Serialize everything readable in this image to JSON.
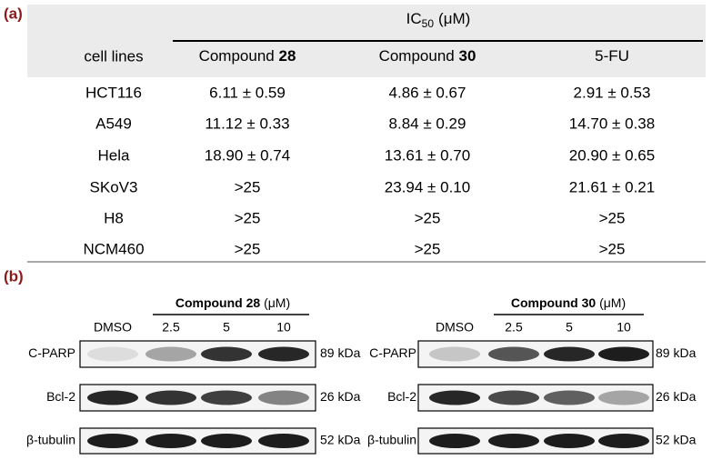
{
  "panel_a": {
    "label": "(a)",
    "header": {
      "group": {
        "main": "IC",
        "sub": "50",
        "unit": "(μM)"
      },
      "row_header": "cell lines",
      "columns": [
        {
          "prefix": "Compound",
          "bold": "28"
        },
        {
          "prefix": "Compound",
          "bold": "30"
        },
        {
          "prefix": "5-FU"
        }
      ]
    },
    "rows": [
      [
        "HCT116",
        "6.11 ± 0.59",
        "4.86 ± 0.67",
        "2.91 ± 0.53"
      ],
      [
        "A549",
        "11.12 ± 0.33",
        "8.84 ± 0.29",
        "14.70 ± 0.38"
      ],
      [
        "Hela",
        "18.90 ± 0.74",
        "13.61 ± 0.70",
        "20.90 ± 0.65"
      ],
      [
        "SKoV3",
        ">25",
        "23.94 ± 0.10",
        "21.61 ± 0.21"
      ],
      [
        "H8",
        ">25",
        ">25",
        ">25"
      ],
      [
        "NCM460",
        ">25",
        ">25",
        ">25"
      ]
    ]
  },
  "panel_b": {
    "label": "(b)",
    "blots": [
      {
        "group": {
          "bold": "Compound 28",
          "unit": "(μM)"
        },
        "lanes": [
          "DMSO",
          "2.5",
          "5",
          "10"
        ],
        "bands": [
          {
            "name": "C-PARP",
            "size": "89 kDa"
          },
          {
            "name": "Bcl-2",
            "size": "26 kDa"
          },
          {
            "name": "β-tubulin",
            "size": "52 kDa"
          }
        ]
      },
      {
        "group": {
          "bold": "Compound 30",
          "unit": "(μM)"
        },
        "lanes": [
          "DMSO",
          "2.5",
          "5",
          "10"
        ],
        "bands": [
          {
            "name": "C-PARP",
            "size": "89 kDa"
          },
          {
            "name": "Bcl-2",
            "size": "26 kDa"
          },
          {
            "name": "β-tubulin",
            "size": "52 kDa"
          }
        ]
      }
    ]
  }
}
